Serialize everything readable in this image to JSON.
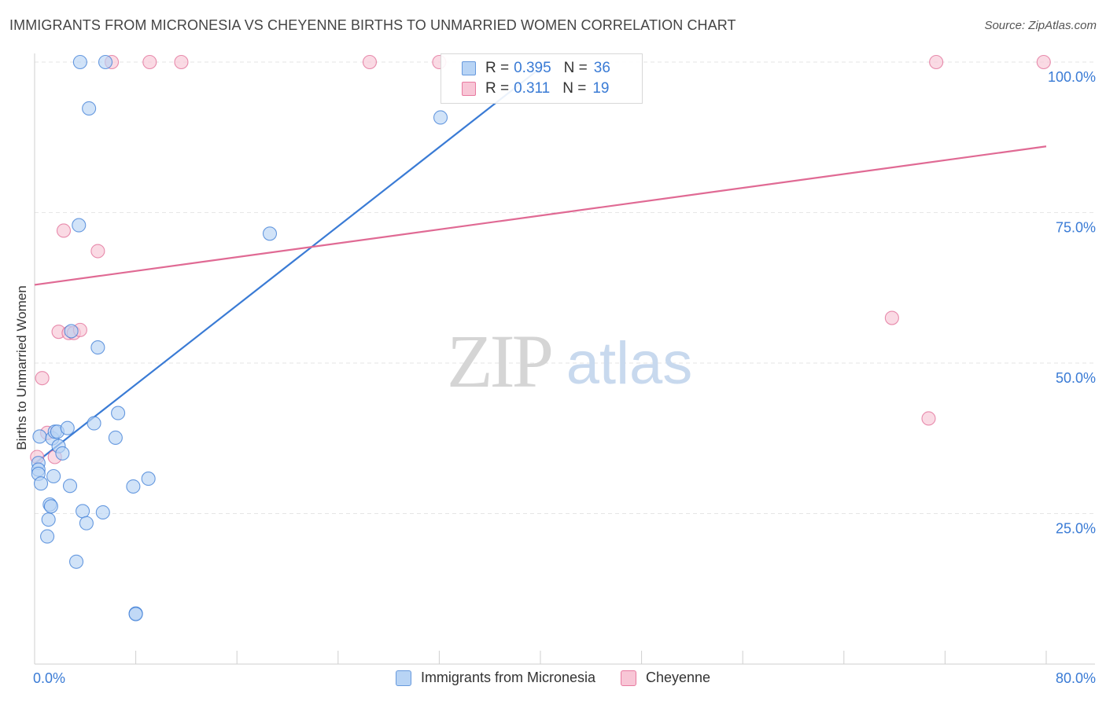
{
  "title": "IMMIGRANTS FROM MICRONESIA VS CHEYENNE BIRTHS TO UNMARRIED WOMEN CORRELATION CHART",
  "source": "Source: ZipAtlas.com",
  "watermark": {
    "zip": "ZIP",
    "atlas": "atlas"
  },
  "legend": {
    "r_label": "R =",
    "n_label": "N =",
    "rows": [
      {
        "r": "0.395",
        "n": "36",
        "color": "#6699dd",
        "fill": "#b8d4f5"
      },
      {
        "r": "0.311",
        "n": "19",
        "color": "#e87aa0",
        "fill": "#f8c6d6"
      }
    ]
  },
  "chart_data": {
    "type": "scatter",
    "title": "IMMIGRANTS FROM MICRONESIA VS CHEYENNE BIRTHS TO UNMARRIED WOMEN CORRELATION CHART",
    "xlabel": "",
    "ylabel": "Births to Unmarried Women",
    "xlim": [
      0,
      80
    ],
    "ylim": [
      0,
      100
    ],
    "x_tick_labels": [
      "0.0%",
      "80.0%"
    ],
    "y_tick_labels": [
      "25.0%",
      "50.0%",
      "75.0%",
      "100.0%"
    ],
    "y_ticks": [
      25,
      50,
      75,
      100
    ],
    "series": [
      {
        "name": "Immigrants from Micronesia",
        "color": "#3a7bd5",
        "fill": "#b8d4f5",
        "points": [
          [
            0.3,
            33.4
          ],
          [
            0.3,
            32.3
          ],
          [
            0.3,
            31.6
          ],
          [
            0.4,
            37.8
          ],
          [
            0.5,
            30.0
          ],
          [
            1.0,
            21.2
          ],
          [
            1.1,
            24.0
          ],
          [
            1.2,
            26.5
          ],
          [
            1.3,
            26.2
          ],
          [
            1.4,
            37.5
          ],
          [
            1.5,
            31.2
          ],
          [
            1.6,
            38.6
          ],
          [
            1.8,
            38.6
          ],
          [
            1.9,
            36.2
          ],
          [
            2.2,
            35.0
          ],
          [
            2.6,
            39.2
          ],
          [
            2.8,
            29.6
          ],
          [
            2.9,
            55.3
          ],
          [
            3.3,
            17.0
          ],
          [
            3.5,
            72.9
          ],
          [
            3.8,
            25.4
          ],
          [
            4.1,
            23.4
          ],
          [
            4.3,
            92.3
          ],
          [
            4.7,
            40.0
          ],
          [
            5.0,
            52.6
          ],
          [
            5.4,
            25.2
          ],
          [
            5.6,
            100.0
          ],
          [
            6.4,
            37.6
          ],
          [
            6.6,
            41.7
          ],
          [
            7.8,
            29.5
          ],
          [
            8.0,
            8.4
          ],
          [
            8.0,
            8.3
          ],
          [
            9.0,
            30.8
          ],
          [
            18.6,
            71.5
          ],
          [
            32.1,
            90.8
          ],
          [
            3.6,
            100.0
          ]
        ]
      },
      {
        "name": "Cheyenne",
        "color": "#e06a94",
        "fill": "#f8c6d6",
        "points": [
          [
            0.2,
            34.4
          ],
          [
            0.6,
            47.5
          ],
          [
            1.0,
            38.4
          ],
          [
            1.6,
            34.4
          ],
          [
            1.9,
            55.2
          ],
          [
            2.3,
            72.0
          ],
          [
            2.7,
            55.0
          ],
          [
            3.1,
            55.0
          ],
          [
            3.6,
            55.5
          ],
          [
            5.0,
            68.6
          ],
          [
            6.1,
            100.0
          ],
          [
            9.1,
            100.0
          ],
          [
            11.6,
            100.0
          ],
          [
            26.5,
            100.0
          ],
          [
            32.0,
            100.0
          ],
          [
            67.8,
            57.5
          ],
          [
            70.7,
            40.8
          ],
          [
            71.3,
            100.0
          ],
          [
            79.8,
            100.0
          ]
        ]
      }
    ],
    "trendlines": [
      {
        "series": "Immigrants from Micronesia",
        "x": [
          0,
          40.6
        ],
        "y": [
          33.3,
          100
        ]
      },
      {
        "series": "Cheyenne",
        "x": [
          0,
          80
        ],
        "y": [
          63.0,
          86.0
        ]
      }
    ]
  },
  "bottom_legend": [
    {
      "label": "Immigrants from Micronesia",
      "color": "#6699dd",
      "fill": "#b8d4f5"
    },
    {
      "label": "Cheyenne",
      "color": "#e87aa0",
      "fill": "#f8c6d6"
    }
  ]
}
